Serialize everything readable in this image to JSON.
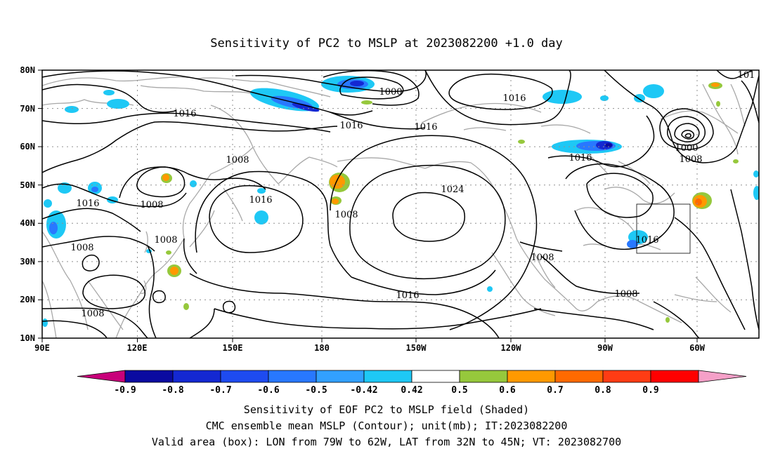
{
  "title": "Sensitivity of PC2 to MSLP at 2023082200 +1.0 day",
  "map": {
    "lat_labels": [
      "80N",
      "70N",
      "60N",
      "50N",
      "40N",
      "30N",
      "20N",
      "10N"
    ],
    "lon_labels": [
      "90E",
      "120E",
      "150E",
      "180",
      "150W",
      "120W",
      "90W",
      "60W"
    ],
    "lon_range": "90E to 50W",
    "lat_range": "10N to 80N",
    "grid": "dotted every 30 deg lon, 10 deg lat",
    "land_outline_color": "#a8a8a8"
  },
  "contour_labels": [
    {
      "text": "1000",
      "note": "Arctic low north of Bering"
    },
    {
      "text": "1016",
      "note": "Arctic high"
    },
    {
      "text": "1016",
      "note": "Siberia"
    },
    {
      "text": "1016",
      "note": "Bering Sea"
    },
    {
      "text": "1016",
      "note": "Gulf of Alaska"
    },
    {
      "text": "1016",
      "note": "Hudson Bay"
    },
    {
      "text": "1016",
      "note": "Central Asia"
    },
    {
      "text": "1016",
      "note": "NW Pacific"
    },
    {
      "text": "1016",
      "note": "subtropical Pacific"
    },
    {
      "text": "1016",
      "note": "US east coast"
    },
    {
      "text": "1008",
      "note": "Okhotsk"
    },
    {
      "text": "1008",
      "note": "Manchuria"
    },
    {
      "text": "1008",
      "note": "Tibet"
    },
    {
      "text": "1008",
      "note": "East China Sea"
    },
    {
      "text": "1008",
      "note": "Bay of Bengal"
    },
    {
      "text": "1008",
      "note": "Aleutian low"
    },
    {
      "text": "1008",
      "note": "Mexico"
    },
    {
      "text": "1008",
      "note": "Caribbean"
    },
    {
      "text": "1008",
      "note": "Labrador low"
    },
    {
      "text": "1024",
      "note": "NE Pacific high"
    },
    {
      "text": "1000",
      "note": "Labrador low center"
    },
    {
      "text": "101",
      "note": "Greenland edge"
    }
  ],
  "colorbar": {
    "labels": [
      "-0.9",
      "-0.8",
      "-0.7",
      "-0.6",
      "-0.5",
      "-0.42",
      "0.42",
      "0.5",
      "0.6",
      "0.7",
      "0.8",
      "0.9"
    ],
    "colors": [
      "#c8007a",
      "#0a0aa0",
      "#1428d2",
      "#1e4bf0",
      "#2878ff",
      "#32a0ff",
      "#1ec8f5",
      "#ffffff",
      "#96c83c",
      "#ff9900",
      "#ff6a00",
      "#ff3c14",
      "#ff0000",
      "#f5a0c8"
    ]
  },
  "captions": [
    "Sensitivity of EOF PC2 to MSLP field (Shaded)",
    "CMC ensemble mean MSLP (Contour); unit(mb); IT:2023082200",
    "Valid area (box): LON from 79W to 62W, LAT from 32N to 45N; VT: 2023082700"
  ],
  "valid_box": {
    "lon_from": "79W",
    "lon_to": "62W",
    "lat_from": "32N",
    "lat_to": "45N"
  }
}
